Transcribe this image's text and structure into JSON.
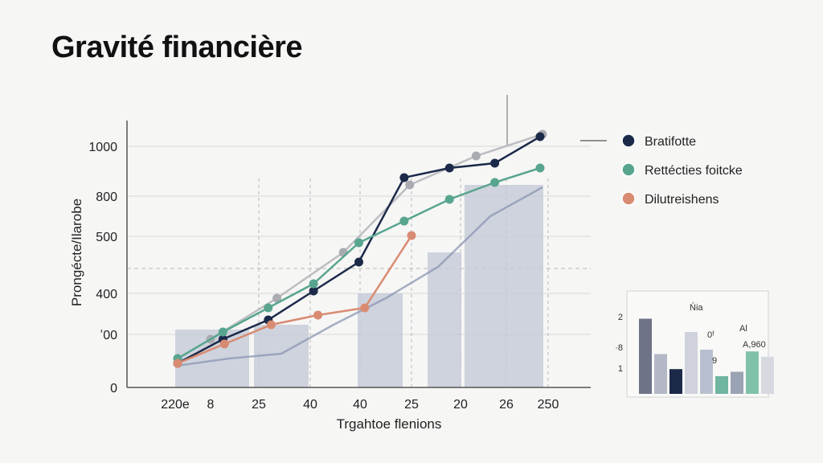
{
  "chart_data": {
    "type": "line",
    "title": "Gravité financière",
    "xlabel": "Trgahtoe flenions",
    "ylabel": "Prongécte/Ilarobe",
    "x_tick_labels": [
      "220e",
      "8",
      "25",
      "40",
      "40",
      "25",
      "20",
      "26",
      "250"
    ],
    "y_tick_labels": [
      "0",
      "ʼ00",
      "400",
      "500",
      "800",
      "1000"
    ],
    "ylim": [
      0,
      1000
    ],
    "grid": true,
    "legend_position": "right",
    "series": [
      {
        "name": "Bratifotte",
        "color": "#1c2a4a",
        "values": [
          100,
          200,
          280,
          400,
          520,
          870,
          910,
          930,
          1040
        ]
      },
      {
        "name": "Rettécties foitcke",
        "color": "#58a58f",
        "values": [
          120,
          230,
          330,
          430,
          600,
          690,
          780,
          850,
          910
        ]
      },
      {
        "name": "Dilutreishens",
        "color": "#d98b72",
        "values": [
          100,
          180,
          260,
          300,
          330,
          630
        ]
      }
    ],
    "background_series": [
      {
        "color": "#a9abb0",
        "values": [
          200,
          370,
          560,
          840,
          960,
          1050
        ]
      },
      {
        "color": "#8a96b0",
        "values": [
          90,
          120,
          140,
          260,
          370,
          500,
          710,
          830
        ]
      }
    ],
    "background_bars": [
      {
        "label": "8",
        "value": 240
      },
      {
        "label": "25",
        "value": 260
      },
      {
        "label": "40",
        "value": 390
      },
      {
        "label": "25",
        "value": 560
      },
      {
        "label": "26",
        "value": 840
      }
    ]
  },
  "inset": {
    "labels": [
      "Ńia",
      "0ᶠ",
      "Al",
      "9",
      "A,960"
    ],
    "axis_labels": [
      "2",
      "·8",
      "1"
    ],
    "bars": [
      {
        "value": 0.85,
        "color": "#6e7388"
      },
      {
        "value": 0.45,
        "color": "#b4b8c6"
      },
      {
        "value": 0.28,
        "color": "#1c2a4a"
      },
      {
        "value": 0.7,
        "color": "#cfd2dc"
      },
      {
        "value": 0.5,
        "color": "#b8c0d0"
      },
      {
        "value": 0.2,
        "color": "#6fb5a1"
      },
      {
        "value": 0.25,
        "color": "#9aa3b4"
      },
      {
        "value": 0.48,
        "color": "#7fc2a9"
      },
      {
        "value": 0.42,
        "color": "#d6d9e0"
      }
    ]
  }
}
